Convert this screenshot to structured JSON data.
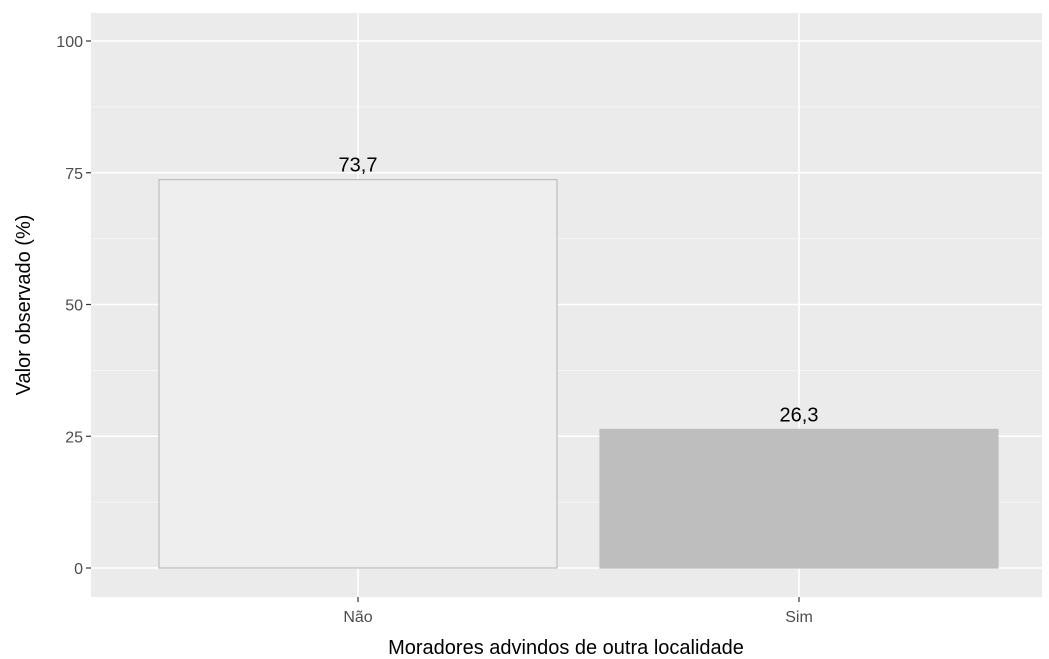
{
  "chart_data": {
    "type": "bar",
    "categories": [
      "Não",
      "Sim"
    ],
    "values": [
      73.7,
      26.3
    ],
    "data_labels": [
      "73,7",
      "26,3"
    ],
    "xlabel": "Moradores advindos de outra localidade",
    "ylabel": "Valor observado (%)",
    "ylim": [
      0,
      100
    ],
    "yticks": [
      0,
      25,
      50,
      75,
      100
    ],
    "ytick_labels": [
      "0",
      "25",
      "50",
      "75",
      "100"
    ],
    "grid": true,
    "legend": "none",
    "bar_colors": [
      "#eeeeee",
      "#bebebe"
    ],
    "bar_outline_colors": [
      "#bdbdbd",
      "#bebebe"
    ],
    "panel_background": "#ebebeb",
    "grid_color": "#ffffff"
  }
}
